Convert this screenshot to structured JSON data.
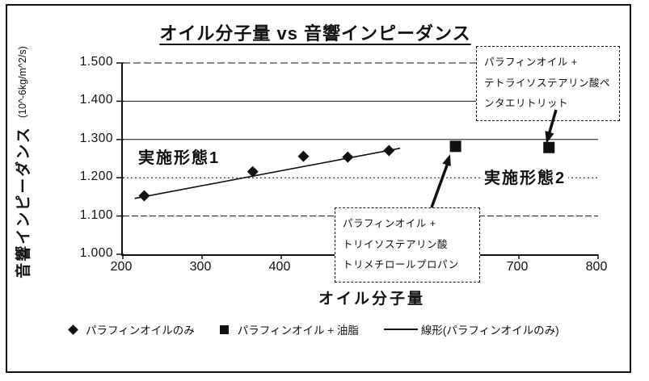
{
  "chart_data": {
    "type": "scatter",
    "title": "オイル分子量 vs 音響インピーダンス",
    "xlabel": "オイル分子量",
    "ylabel": "音響インピーダンス",
    "ylabel_unit": "(10^-6kg/m^2/s)",
    "xlim": [
      200,
      800
    ],
    "ylim": [
      1.0,
      1.5
    ],
    "xticks": [
      200,
      300,
      400,
      500,
      600,
      700,
      800
    ],
    "xtick_labels": [
      "200",
      "300",
      "400",
      "500",
      "600",
      "700",
      "800"
    ],
    "yticks": [
      1.0,
      1.1,
      1.2,
      1.3,
      1.4,
      1.5
    ],
    "ytick_labels": [
      "1.000",
      "1.100",
      "1.200",
      "1.300",
      "1.400",
      "1.500"
    ],
    "grid": true,
    "legend_position": "bottom",
    "series": [
      {
        "name": "パラフィンオイルのみ",
        "marker": "diamond",
        "points": [
          [
            227,
            1.153
          ],
          [
            364,
            1.216
          ],
          [
            428,
            1.256
          ],
          [
            484,
            1.254
          ],
          [
            536,
            1.271
          ]
        ]
      },
      {
        "name": "パラフィンオイル + 油脂",
        "marker": "square",
        "points": [
          [
            620,
            1.282
          ],
          [
            738,
            1.279
          ]
        ]
      },
      {
        "name": "線形(パラフィンオイルのみ)",
        "marker": "line",
        "trendline": true,
        "points": [
          [
            215,
            1.146
          ],
          [
            550,
            1.277
          ]
        ]
      }
    ],
    "annotations": [
      {
        "text": "実施形態1"
      },
      {
        "text": "実施形態2"
      },
      {
        "text": "パラフィンオイル +\nトリイソステアリン酸\nトリメチロールプロパン",
        "arrow_to_point": [
          620,
          1.282
        ]
      },
      {
        "text": "パラフィンオイル +\nテトライソステアリン酸ペ\nンタエリトリット",
        "arrow_to_point": [
          738,
          1.279
        ]
      }
    ]
  }
}
